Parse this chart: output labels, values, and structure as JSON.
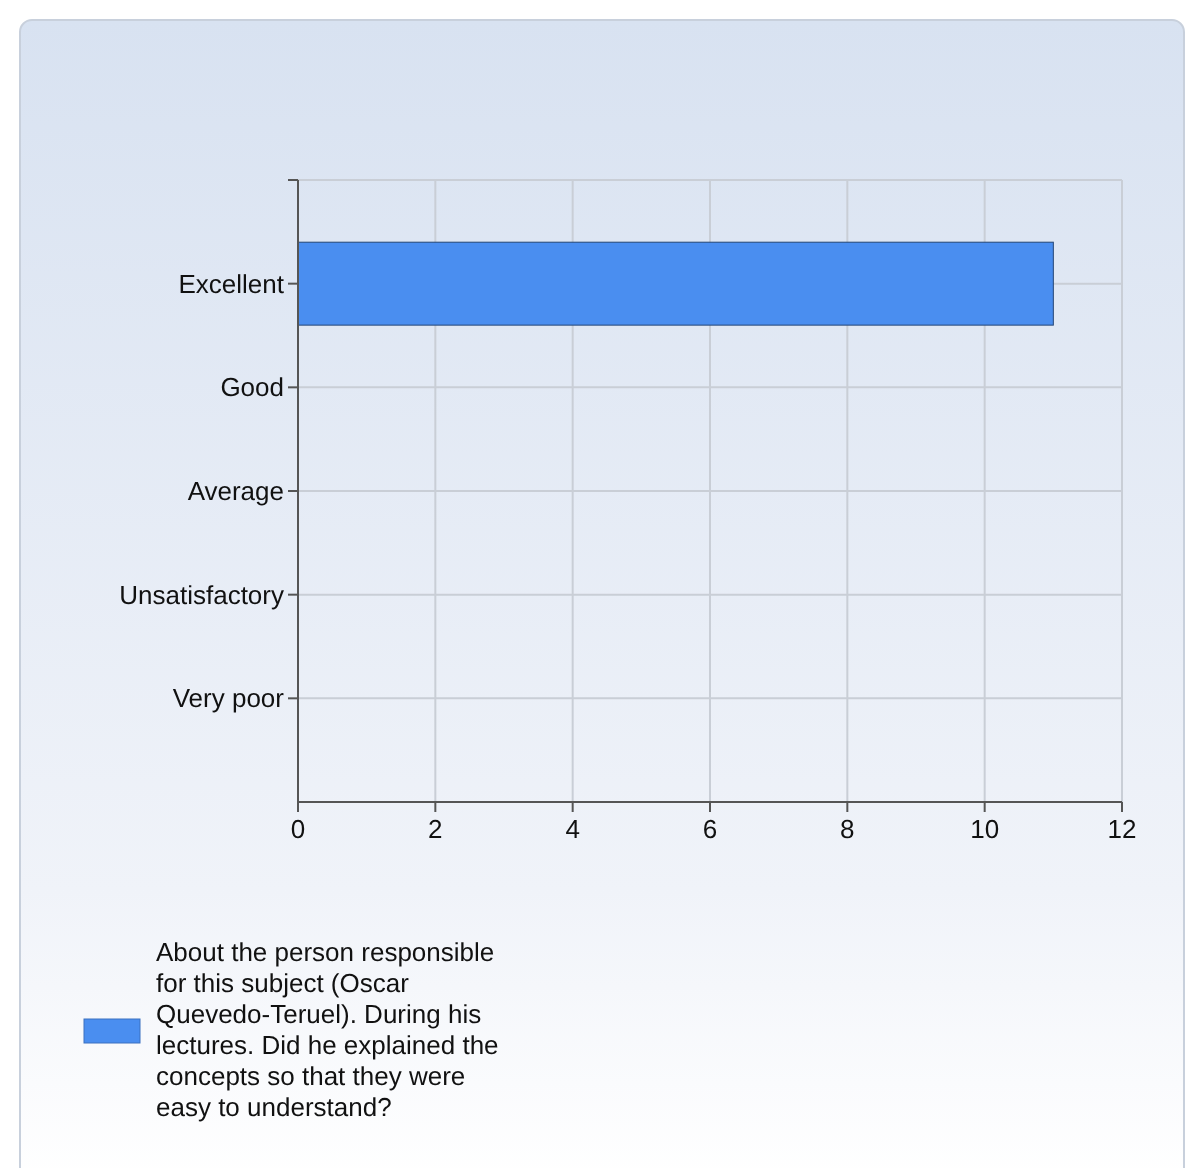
{
  "chart_data": {
    "type": "bar",
    "orientation": "horizontal",
    "categories": [
      "Excellent",
      "Good",
      "Average",
      "Unsatisfactory",
      "Very poor"
    ],
    "series": [
      {
        "name": "About the person responsible for this subject (Oscar Quevedo-Teruel). During his lectures. Did he explained the concepts so that they were easy to understand?",
        "color": "#4a8ef0",
        "values": [
          11,
          0,
          0,
          0,
          0
        ]
      }
    ],
    "xlim": [
      0,
      12
    ],
    "xticks": [
      0,
      2,
      4,
      6,
      8,
      10,
      12
    ],
    "grid": true,
    "legend": "bottom left"
  }
}
